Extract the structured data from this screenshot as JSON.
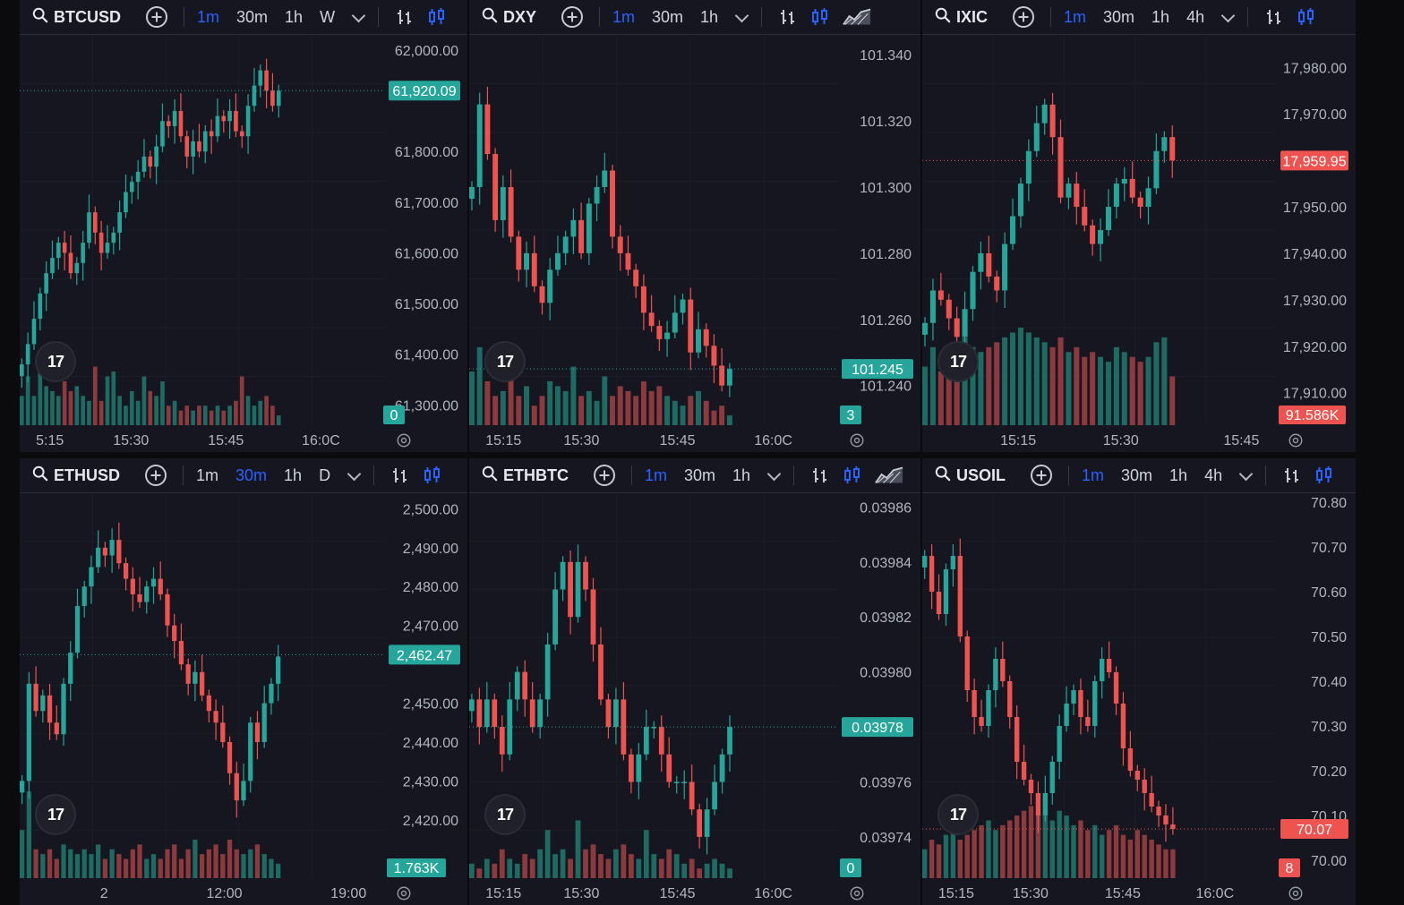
{
  "colors": {
    "up": "#26a69a",
    "down": "#ef5350",
    "upVol": "#1e6b64",
    "downVol": "#8c3a3e",
    "active_tf": "#2962ff",
    "bg": "#15161f"
  },
  "icons": [
    "search-icon",
    "add-compare-icon",
    "chevron-down-icon",
    "bar-style-icon",
    "candle-style-icon",
    "area-style-icon",
    "tradingview-logo-icon",
    "settings-gear-icon"
  ],
  "panes": [
    {
      "id": "btcusd",
      "symbol": "BTCUSD",
      "timeframes": [
        "1m",
        "30m",
        "1h",
        "W"
      ],
      "active": "1m",
      "area_icon": false,
      "price_tag": "61,920.09",
      "price_color": "#26a69a",
      "volume_tag": "0",
      "volume_color": "#26a69a",
      "y_labels": [
        "62,000.00",
        "61,800.00",
        "61,700.00",
        "61,600.00",
        "61,500.00",
        "61,400.00",
        "61,300.00"
      ],
      "x_labels": [
        "5:15",
        "15:30",
        "15:45",
        "16:0C"
      ],
      "chart_data": {
        "type": "candlestick",
        "ylim": [
          61260,
          62030
        ],
        "last": 61920.09,
        "closes": [
          61380,
          61420,
          61470,
          61520,
          61560,
          61590,
          61620,
          61600,
          61560,
          61580,
          61620,
          61680,
          61640,
          61600,
          61620,
          61640,
          61680,
          61720,
          61740,
          61760,
          61790,
          61770,
          61810,
          61860,
          61850,
          61880,
          61830,
          61790,
          61820,
          61800,
          61840,
          61830,
          61870,
          61860,
          61880,
          61840,
          61830,
          61890,
          61930,
          61960,
          61920,
          61890,
          61920
        ],
        "volumes": [
          0.3,
          0.5,
          0.3,
          0.6,
          0.4,
          0.35,
          0.3,
          0.45,
          0.35,
          0.4,
          0.3,
          0.25,
          0.6,
          0.25,
          0.5,
          0.55,
          0.3,
          0.2,
          0.35,
          0.25,
          0.5,
          0.35,
          0.3,
          0.45,
          0.2,
          0.25,
          0.15,
          0.2,
          0.15,
          0.2,
          0.2,
          0.15,
          0.2,
          0.15,
          0.2,
          0.25,
          0.5,
          0.3,
          0.2,
          0.25,
          0.3,
          0.2,
          0.1
        ]
      }
    },
    {
      "id": "dxy",
      "symbol": "DXY",
      "timeframes": [
        "1m",
        "30m",
        "1h"
      ],
      "active": "1m",
      "area_icon": true,
      "price_tag": "101.245",
      "price_color": "#26a69a",
      "volume_tag": "3",
      "volume_color": "#26a69a",
      "y_labels": [
        "101.340",
        "101.320",
        "101.300",
        "101.280",
        "101.260",
        "101.240"
      ],
      "x_labels": [
        "15:15",
        "15:30",
        "15:45",
        "16:0C"
      ],
      "chart_data": {
        "type": "candlestick",
        "ylim": [
          101.228,
          101.346
        ],
        "last": 101.245,
        "closes": [
          101.3,
          101.325,
          101.31,
          101.29,
          101.3,
          101.285,
          101.275,
          101.28,
          101.27,
          101.265,
          101.275,
          101.28,
          101.285,
          101.29,
          101.28,
          101.295,
          101.3,
          101.305,
          101.285,
          101.28,
          101.275,
          101.27,
          101.262,
          101.258,
          101.254,
          101.256,
          101.262,
          101.266,
          101.25,
          101.257,
          101.252,
          101.246,
          101.24,
          101.245
        ],
        "volumes": [
          0.55,
          0.8,
          0.45,
          0.3,
          0.35,
          0.5,
          0.3,
          0.4,
          0.2,
          0.3,
          0.45,
          0.4,
          0.35,
          0.6,
          0.3,
          0.35,
          0.25,
          0.5,
          0.3,
          0.4,
          0.35,
          0.3,
          0.45,
          0.35,
          0.4,
          0.3,
          0.25,
          0.2,
          0.3,
          0.35,
          0.25,
          0.15,
          0.2,
          0.1
        ]
      }
    },
    {
      "id": "ixic",
      "symbol": "IXIC",
      "timeframes": [
        "1m",
        "30m",
        "1h",
        "4h"
      ],
      "active": "1m",
      "area_icon": false,
      "price_tag": "17,959.95",
      "price_color": "#ef5350",
      "volume_tag": "91.586K",
      "volume_color": "#ef5350",
      "y_labels": [
        "17,980.00",
        "17,970.00",
        "17,950.00",
        "17,940.00",
        "17,930.00",
        "17,920.00",
        "17,910.00"
      ],
      "x_labels": [
        "15:15",
        "15:30",
        "15:45"
      ],
      "chart_data": {
        "type": "candlestick",
        "ylim": [
          17903,
          17987
        ],
        "last": 17959.95,
        "closes": [
          17925,
          17932,
          17930,
          17926,
          17922,
          17928,
          17936,
          17940,
          17935,
          17932,
          17942,
          17948,
          17955,
          17962,
          17968,
          17972,
          17965,
          17952,
          17955,
          17950,
          17946,
          17942,
          17945,
          17950,
          17955,
          17956,
          17952,
          17950,
          17954,
          17962,
          17965,
          17960
        ],
        "volumes": [
          0.6,
          0.8,
          0.55,
          0.7,
          0.5,
          0.9,
          0.8,
          0.75,
          0.8,
          0.85,
          0.9,
          0.95,
          1.0,
          0.95,
          0.9,
          0.85,
          0.8,
          0.9,
          0.75,
          0.8,
          0.7,
          0.75,
          0.7,
          0.65,
          0.8,
          0.75,
          0.7,
          0.65,
          0.7,
          0.85,
          0.9,
          0.5
        ]
      }
    },
    {
      "id": "ethusd",
      "symbol": "ETHUSD",
      "timeframes": [
        "1m",
        "30m",
        "1h",
        "D"
      ],
      "active": "30m",
      "area_icon": false,
      "price_tag": "2,462.47",
      "price_color": "#26a69a",
      "volume_tag": "1.763K",
      "volume_color": "#26a69a",
      "y_labels": [
        "2,500.00",
        "2,490.00",
        "2,480.00",
        "2,470.00",
        "2,450.00",
        "2,440.00",
        "2,430.00",
        "2,420.00"
      ],
      "x_labels": [
        "2",
        "12:00",
        "19:00"
      ],
      "chart_data": {
        "type": "candlestick",
        "ylim": [
          2405,
          2504
        ],
        "last": 2462.47,
        "closes": [
          2430,
          2455,
          2448,
          2452,
          2445,
          2442,
          2455,
          2463,
          2475,
          2480,
          2485,
          2490,
          2488,
          2492,
          2486,
          2482,
          2478,
          2476,
          2480,
          2482,
          2478,
          2470,
          2466,
          2460,
          2455,
          2458,
          2452,
          2448,
          2445,
          2440,
          2432,
          2425,
          2430,
          2445,
          2440,
          2450,
          2455,
          2462
        ],
        "volumes": [
          0.5,
          0.9,
          0.3,
          0.25,
          0.3,
          0.2,
          0.35,
          0.3,
          0.25,
          0.3,
          0.25,
          0.35,
          0.2,
          0.3,
          0.25,
          0.2,
          0.3,
          0.35,
          0.2,
          0.25,
          0.2,
          0.3,
          0.35,
          0.2,
          0.3,
          0.4,
          0.25,
          0.3,
          0.35,
          0.25,
          0.4,
          0.3,
          0.25,
          0.3,
          0.35,
          0.25,
          0.2,
          0.15
        ]
      }
    },
    {
      "id": "ethbtc",
      "symbol": "ETHBTC",
      "timeframes": [
        "1m",
        "30m",
        "1h"
      ],
      "active": "1m",
      "area_icon": true,
      "price_tag": "0.03978",
      "price_color": "#26a69a",
      "volume_tag": "0",
      "volume_color": "#26a69a",
      "y_labels": [
        "0.03986",
        "0.03984",
        "0.03982",
        "0.03980",
        "0.03976",
        "0.03974"
      ],
      "x_labels": [
        "15:15",
        "15:30",
        "15:45",
        "16:0C"
      ],
      "chart_data": {
        "type": "candlestick",
        "ylim": [
          0.039725,
          0.039865
        ],
        "last": 0.03978,
        "closes": [
          0.03979,
          0.03978,
          0.03979,
          0.03978,
          0.03977,
          0.03979,
          0.0398,
          0.03979,
          0.03978,
          0.03979,
          0.03981,
          0.03983,
          0.03984,
          0.03982,
          0.03984,
          0.03983,
          0.03981,
          0.03979,
          0.03978,
          0.03979,
          0.03977,
          0.03976,
          0.03977,
          0.03978,
          0.03978,
          0.03977,
          0.03976,
          0.03976,
          0.03976,
          0.03975,
          0.03974,
          0.03975,
          0.03976,
          0.03977,
          0.03978
        ],
        "volumes": [
          0.15,
          0.1,
          0.2,
          0.15,
          0.3,
          0.2,
          0.15,
          0.25,
          0.2,
          0.3,
          0.5,
          0.25,
          0.3,
          0.2,
          0.6,
          0.3,
          0.35,
          0.25,
          0.2,
          0.3,
          0.35,
          0.25,
          0.2,
          0.5,
          0.25,
          0.2,
          0.3,
          0.25,
          0.15,
          0.2,
          0.1,
          0.15,
          0.2,
          0.15,
          0.1
        ]
      }
    },
    {
      "id": "usoil",
      "symbol": "USOIL",
      "timeframes": [
        "1m",
        "30m",
        "1h",
        "4h"
      ],
      "active": "1m",
      "area_icon": false,
      "price_tag": "70.07",
      "price_color": "#ef5350",
      "volume_tag": "8",
      "volume_color": "#ef5350",
      "y_labels": [
        "70.80",
        "70.70",
        "70.60",
        "70.50",
        "70.40",
        "70.30",
        "70.20",
        "70.10",
        "70.00"
      ],
      "x_labels": [
        "15:15",
        "15:30",
        "15:45",
        "16:0C"
      ],
      "chart_data": {
        "type": "candlestick",
        "ylim": [
          69.96,
          70.82
        ],
        "last": 70.07,
        "closes": [
          70.68,
          70.6,
          70.55,
          70.65,
          70.68,
          70.5,
          70.38,
          70.32,
          70.3,
          70.38,
          70.45,
          70.4,
          70.32,
          70.22,
          70.18,
          70.15,
          70.1,
          70.15,
          70.22,
          70.3,
          70.35,
          70.38,
          70.32,
          70.3,
          70.4,
          70.45,
          70.42,
          70.35,
          70.25,
          70.2,
          70.18,
          70.15,
          70.12,
          70.1,
          70.08,
          70.07
        ],
        "volumes": [
          0.3,
          0.4,
          0.35,
          0.45,
          0.5,
          0.4,
          0.45,
          0.5,
          0.55,
          0.6,
          0.5,
          0.55,
          0.6,
          0.65,
          0.7,
          0.75,
          0.7,
          0.65,
          0.6,
          0.7,
          0.65,
          0.55,
          0.6,
          0.5,
          0.55,
          0.45,
          0.5,
          0.55,
          0.45,
          0.4,
          0.5,
          0.45,
          0.4,
          0.35,
          0.3,
          0.3
        ]
      }
    }
  ]
}
